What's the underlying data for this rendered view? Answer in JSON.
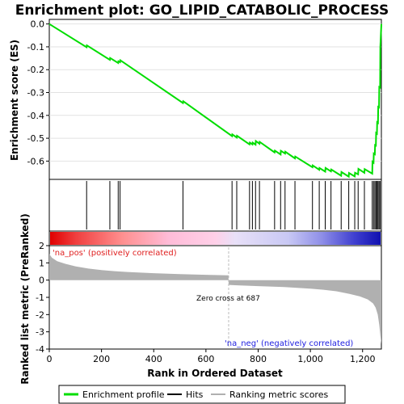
{
  "title": "Enrichment plot: GO_LIPID_CATABOLIC_PROCESS",
  "colors": {
    "es_line": "#00dd00",
    "hits": "#000000",
    "metric_fill": "#b0b0b0",
    "pos_label": "#e02020",
    "neg_label": "#2020e0"
  },
  "chart_data": [
    {
      "type": "line",
      "name": "Enrichment profile",
      "ylabel": "Enrichment score (ES)",
      "xlim": [
        0,
        1272
      ],
      "ylim": [
        -0.68,
        0.02
      ],
      "yticks": [
        "0.0",
        "-0.1",
        "-0.2",
        "-0.3",
        "-0.4",
        "-0.5",
        "-0.6"
      ],
      "grid": true,
      "x": [
        0,
        143,
        144,
        232,
        233,
        264,
        265,
        271,
        272,
        512,
        513,
        700,
        701,
        718,
        719,
        767,
        768,
        778,
        779,
        790,
        791,
        805,
        806,
        863,
        864,
        886,
        887,
        903,
        904,
        941,
        942,
        1008,
        1009,
        1034,
        1035,
        1057,
        1058,
        1079,
        1080,
        1118,
        1119,
        1147,
        1148,
        1170,
        1171,
        1183,
        1184,
        1207,
        1208,
        1237,
        1238,
        1242,
        1243,
        1247,
        1248,
        1251,
        1252,
        1255,
        1256,
        1259,
        1260,
        1263,
        1264,
        1267,
        1268,
        1272
      ],
      "y": [
        0.0,
        -0.102,
        -0.094,
        -0.157,
        -0.149,
        -0.171,
        -0.163,
        -0.167,
        -0.159,
        -0.346,
        -0.338,
        -0.491,
        -0.483,
        -0.497,
        -0.489,
        -0.527,
        -0.519,
        -0.527,
        -0.519,
        -0.528,
        -0.512,
        -0.524,
        -0.516,
        -0.562,
        -0.554,
        -0.571,
        -0.555,
        -0.567,
        -0.559,
        -0.588,
        -0.58,
        -0.627,
        -0.619,
        -0.638,
        -0.63,
        -0.646,
        -0.63,
        -0.645,
        -0.637,
        -0.664,
        -0.648,
        -0.668,
        -0.652,
        -0.667,
        -0.651,
        -0.658,
        -0.634,
        -0.651,
        -0.635,
        -0.655,
        -0.603,
        -0.607,
        -0.567,
        -0.57,
        -0.53,
        -0.532,
        -0.477,
        -0.48,
        -0.43,
        -0.433,
        -0.363,
        -0.365,
        -0.276,
        -0.278,
        -0.102,
        0.0
      ]
    },
    {
      "type": "line",
      "name": "Hits",
      "hits": [
        143,
        232,
        264,
        271,
        512,
        700,
        718,
        767,
        778,
        790,
        805,
        863,
        886,
        903,
        941,
        1008,
        1034,
        1057,
        1079,
        1118,
        1147,
        1170,
        1183,
        1207,
        1237,
        1242,
        1247,
        1251,
        1255,
        1259,
        1263,
        1267
      ]
    },
    {
      "type": "area",
      "name": "Ranking metric scores",
      "xlabel": "Rank in Ordered Dataset",
      "ylabel": "Ranked list metric (PreRanked)",
      "xlim": [
        0,
        1272
      ],
      "ylim": [
        -4,
        2
      ],
      "yticks": [
        "2",
        "1",
        "0",
        "-1",
        "-2",
        "-3",
        "-4"
      ],
      "xticks": [
        "0",
        "200",
        "400",
        "600",
        "800",
        "1,000",
        "1,200"
      ],
      "x": [
        0,
        10,
        30,
        60,
        100,
        150,
        200,
        250,
        300,
        400,
        500,
        600,
        686,
        687,
        720,
        800,
        900,
        1000,
        1050,
        1100,
        1150,
        1190,
        1220,
        1240,
        1250,
        1258,
        1264,
        1268,
        1272
      ],
      "values": [
        1.52,
        1.3,
        1.1,
        0.95,
        0.8,
        0.67,
        0.58,
        0.52,
        0.47,
        0.4,
        0.35,
        0.31,
        0.28,
        -0.28,
        -0.3,
        -0.35,
        -0.4,
        -0.5,
        -0.56,
        -0.65,
        -0.8,
        -0.95,
        -1.12,
        -1.35,
        -1.6,
        -2.0,
        -2.6,
        -3.2,
        -3.7
      ],
      "zero_cross_rank": 687,
      "annotation": "Zero cross at 687",
      "pos_label": "'na_pos' (positively correlated)",
      "neg_label": "'na_neg' (negatively correlated)"
    }
  ],
  "legend": [
    {
      "label": "Enrichment profile",
      "swatch": "#00dd00"
    },
    {
      "label": "Hits",
      "swatch": "#000000"
    },
    {
      "label": "Ranking metric scores",
      "swatch": "#b0b0b0"
    }
  ]
}
